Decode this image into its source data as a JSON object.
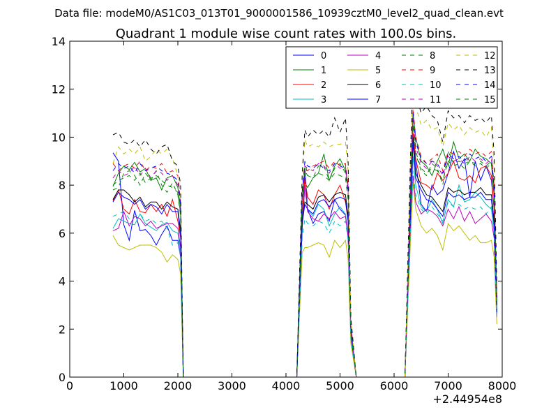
{
  "chart_data": {
    "type": "line",
    "supertitle": "Data file: modeM0/AS1C03_013T01_9000001586_10939cztM0_level2_quad_clean.evt",
    "title": "Quadrant 1 module wise count rates with 100.0s bins.",
    "xlabel": "",
    "ylabel": "",
    "x_offset_label": "+2.44954e8",
    "xlim": [
      0,
      8000
    ],
    "ylim": [
      0,
      14
    ],
    "x_ticks": [
      0,
      1000,
      2000,
      3000,
      4000,
      5000,
      6000,
      7000,
      8000
    ],
    "y_ticks": [
      0,
      2,
      4,
      6,
      8,
      10,
      12,
      14
    ],
    "x": [
      800,
      900,
      1000,
      1100,
      1200,
      1300,
      1400,
      1500,
      1600,
      1700,
      1800,
      1900,
      2000,
      2050,
      2100,
      2200,
      4200,
      4300,
      4350,
      4400,
      4500,
      4600,
      4700,
      4800,
      4900,
      5000,
      5100,
      5150,
      5200,
      5300,
      6200,
      6300,
      6350,
      6400,
      6500,
      6600,
      6700,
      6800,
      6900,
      7000,
      7100,
      7200,
      7300,
      7400,
      7500,
      7600,
      7700,
      7800,
      7850,
      7900
    ],
    "legend_position": "top-right",
    "legend_columns": 4,
    "series": [
      {
        "name": "0",
        "color": "#0000ff",
        "dash": "solid",
        "values": [
          9.35,
          9.0,
          6.35,
          5.7,
          6.95,
          6.1,
          6.15,
          5.9,
          5.5,
          5.95,
          6.3,
          5.7,
          5.7,
          5.0,
          0,
          0,
          0,
          6.5,
          8.7,
          7.0,
          6.4,
          6.8,
          6.9,
          6.5,
          7.4,
          7.0,
          6.75,
          5.8,
          1.8,
          0,
          0,
          6.9,
          9.8,
          9.0,
          7.2,
          6.9,
          8.0,
          7.6,
          7.8,
          8.5,
          9.4,
          8.7,
          9.1,
          7.5,
          9.0,
          8.2,
          8.8,
          8.2,
          7.0,
          3.0
        ]
      },
      {
        "name": "1",
        "color": "#008000",
        "dash": "solid",
        "values": [
          7.95,
          8.5,
          8.8,
          8.65,
          8.95,
          8.55,
          8.7,
          8.2,
          8.3,
          7.8,
          8.3,
          8.4,
          7.9,
          7.0,
          0,
          0,
          0,
          7.6,
          8.1,
          7.9,
          8.3,
          8.5,
          9.3,
          8.2,
          8.8,
          9.1,
          8.6,
          8.0,
          2.0,
          0,
          0,
          7.5,
          11.0,
          10.0,
          9.0,
          8.8,
          8.4,
          9.0,
          9.5,
          8.8,
          9.8,
          9.1,
          9.3,
          9.0,
          9.5,
          9.2,
          9.1,
          8.9,
          7.5,
          3.0
        ]
      },
      {
        "name": "2",
        "color": "#ff0000",
        "dash": "solid",
        "values": [
          7.35,
          7.8,
          7.0,
          6.8,
          7.4,
          6.9,
          6.85,
          7.2,
          6.9,
          7.2,
          6.7,
          7.4,
          6.5,
          5.8,
          0,
          0,
          0,
          6.8,
          8.3,
          7.5,
          7.2,
          7.8,
          7.6,
          7.0,
          7.6,
          8.0,
          7.3,
          6.5,
          1.8,
          0,
          0,
          7.2,
          10.2,
          9.1,
          8.1,
          8.0,
          7.8,
          8.5,
          8.2,
          8.5,
          9.0,
          8.3,
          8.2,
          8.4,
          8.1,
          8.7,
          8.8,
          8.4,
          7.0,
          2.8
        ]
      },
      {
        "name": "3",
        "color": "#00bfbf",
        "dash": "solid",
        "values": [
          6.2,
          6.6,
          6.5,
          6.4,
          6.35,
          6.8,
          6.4,
          6.25,
          6.1,
          6.35,
          6.45,
          6.1,
          6.0,
          5.2,
          0,
          0,
          0,
          6.3,
          7.9,
          7.0,
          6.7,
          7.2,
          7.0,
          6.3,
          6.8,
          7.1,
          6.8,
          6.0,
          1.7,
          0,
          0,
          6.3,
          9.2,
          8.0,
          7.1,
          6.9,
          7.4,
          7.0,
          6.4,
          7.4,
          7.1,
          8.0,
          7.3,
          7.4,
          7.7,
          7.5,
          7.2,
          7.0,
          6.0,
          2.6
        ]
      },
      {
        "name": "4",
        "color": "#bf00bf",
        "dash": "solid",
        "values": [
          6.1,
          6.2,
          6.9,
          6.3,
          6.7,
          6.6,
          6.3,
          6.5,
          6.2,
          6.3,
          6.4,
          6.4,
          6.2,
          5.4,
          0,
          0,
          0,
          6.2,
          8.0,
          6.9,
          6.6,
          6.5,
          6.8,
          6.6,
          6.9,
          6.6,
          6.7,
          5.9,
          1.7,
          0,
          0,
          6.1,
          8.4,
          7.3,
          6.8,
          7.0,
          6.9,
          6.7,
          6.3,
          7.0,
          6.6,
          7.1,
          6.5,
          6.9,
          6.4,
          6.6,
          6.8,
          6.5,
          5.8,
          2.5
        ]
      },
      {
        "name": "5",
        "color": "#bfbf00",
        "dash": "solid",
        "values": [
          5.9,
          5.5,
          5.4,
          5.3,
          5.4,
          5.5,
          5.5,
          5.5,
          5.4,
          5.2,
          4.8,
          5.1,
          4.9,
          4.3,
          0,
          0,
          0,
          5.2,
          5.4,
          5.4,
          5.5,
          5.6,
          5.5,
          5.0,
          5.7,
          5.4,
          5.7,
          4.9,
          1.4,
          0,
          0,
          5.5,
          8.1,
          7.0,
          6.3,
          6.0,
          6.2,
          5.9,
          5.3,
          6.4,
          6.1,
          6.3,
          6.0,
          5.7,
          5.9,
          5.6,
          5.6,
          5.7,
          5.0,
          2.2
        ]
      },
      {
        "name": "6",
        "color": "#000000",
        "dash": "solid",
        "values": [
          7.4,
          7.8,
          7.8,
          7.6,
          7.3,
          7.5,
          7.1,
          7.3,
          7.3,
          7.0,
          7.3,
          7.1,
          7.0,
          6.1,
          0,
          0,
          0,
          6.5,
          7.3,
          7.2,
          7.0,
          7.5,
          7.6,
          7.3,
          7.6,
          7.7,
          7.6,
          6.7,
          1.9,
          0,
          0,
          6.9,
          10.0,
          8.5,
          8.0,
          7.6,
          7.5,
          7.2,
          6.9,
          7.9,
          7.7,
          7.8,
          7.6,
          7.7,
          7.7,
          7.9,
          7.6,
          7.6,
          6.5,
          2.8
        ]
      },
      {
        "name": "7",
        "color": "#0000ff",
        "dash": "solid",
        "values": [
          7.3,
          7.7,
          7.5,
          7.4,
          7.2,
          7.4,
          7.0,
          7.2,
          7.1,
          6.8,
          7.2,
          6.9,
          6.9,
          5.9,
          0,
          0,
          0,
          6.4,
          7.2,
          7.0,
          6.8,
          7.3,
          7.4,
          7.1,
          7.4,
          7.5,
          7.4,
          6.5,
          1.9,
          0,
          0,
          6.7,
          9.8,
          8.3,
          7.8,
          7.4,
          7.3,
          7.0,
          6.7,
          7.7,
          7.5,
          7.6,
          7.4,
          7.5,
          7.5,
          7.7,
          7.4,
          7.4,
          6.3,
          2.7
        ]
      },
      {
        "name": "8",
        "color": "#008000",
        "dash": "dashed",
        "values": [
          7.8,
          7.9,
          8.5,
          8.6,
          8.4,
          8.0,
          8.5,
          8.2,
          8.6,
          8.0,
          7.7,
          8.1,
          7.6,
          6.7,
          0,
          0,
          0,
          7.3,
          9.0,
          8.4,
          8.3,
          8.8,
          8.8,
          8.2,
          8.7,
          8.9,
          8.5,
          7.6,
          2.1,
          0,
          0,
          7.5,
          10.7,
          9.3,
          8.6,
          8.4,
          8.9,
          8.7,
          8.0,
          9.4,
          8.9,
          9.0,
          8.9,
          9.0,
          8.9,
          9.0,
          8.8,
          9.0,
          7.8,
          3.2
        ]
      },
      {
        "name": "9",
        "color": "#ff0000",
        "dash": "dashed",
        "values": [
          8.9,
          8.6,
          8.8,
          8.9,
          8.7,
          9.0,
          8.6,
          8.8,
          8.7,
          8.9,
          8.5,
          8.6,
          8.4,
          7.3,
          0,
          0,
          0,
          7.6,
          8.7,
          8.6,
          8.8,
          8.9,
          9.0,
          8.7,
          9.0,
          8.8,
          8.9,
          8.0,
          2.2,
          0,
          0,
          8.0,
          11.2,
          10.0,
          9.2,
          8.9,
          9.1,
          9.3,
          8.6,
          9.4,
          9.3,
          9.4,
          9.2,
          9.5,
          9.3,
          9.4,
          9.2,
          9.4,
          8.0,
          3.4
        ]
      },
      {
        "name": "10",
        "color": "#00bfbf",
        "dash": "dashed",
        "values": [
          6.7,
          6.8,
          6.9,
          6.6,
          6.7,
          6.8,
          6.5,
          6.6,
          6.4,
          6.5,
          6.2,
          5.5,
          5.6,
          5.0,
          0,
          0,
          0,
          5.8,
          6.6,
          6.4,
          6.3,
          6.5,
          6.4,
          6.0,
          6.5,
          6.3,
          6.5,
          5.7,
          1.6,
          0,
          0,
          6.0,
          8.6,
          7.6,
          7.0,
          6.8,
          7.1,
          6.8,
          6.5,
          7.3,
          7.1,
          7.2,
          7.0,
          7.1,
          7.0,
          7.1,
          6.8,
          7.1,
          6.0,
          2.6
        ]
      },
      {
        "name": "11",
        "color": "#bf00bf",
        "dash": "dashed",
        "values": [
          8.3,
          8.6,
          8.4,
          8.5,
          8.8,
          8.4,
          8.7,
          8.3,
          8.6,
          8.5,
          8.2,
          8.4,
          8.0,
          7.0,
          0,
          0,
          0,
          7.8,
          8.8,
          8.7,
          8.6,
          8.9,
          8.8,
          8.5,
          8.9,
          8.7,
          8.8,
          7.8,
          2.1,
          0,
          0,
          7.7,
          10.8,
          9.6,
          8.9,
          8.7,
          9.0,
          8.8,
          8.4,
          9.2,
          9.0,
          9.1,
          8.9,
          9.2,
          9.0,
          9.1,
          8.9,
          9.1,
          7.7,
          3.3
        ]
      },
      {
        "name": "12",
        "color": "#bfbf00",
        "dash": "dashed",
        "values": [
          8.9,
          9.6,
          9.3,
          9.5,
          9.3,
          9.6,
          9.0,
          9.2,
          9.5,
          9.3,
          9.5,
          9.1,
          8.4,
          7.6,
          0,
          0,
          0,
          8.3,
          9.9,
          9.6,
          9.7,
          9.6,
          9.8,
          9.6,
          9.7,
          9.7,
          9.8,
          8.6,
          2.4,
          0,
          0,
          8.6,
          12.5,
          11.3,
          10.5,
          10.7,
          10.3,
          10.4,
          9.6,
          10.6,
          10.3,
          10.5,
          10.1,
          10.4,
          10.2,
          10.3,
          10.0,
          10.4,
          8.8,
          3.7
        ]
      },
      {
        "name": "13",
        "color": "#000000",
        "dash": "dashed",
        "values": [
          10.1,
          10.2,
          9.8,
          9.7,
          9.9,
          9.6,
          9.9,
          9.5,
          9.3,
          9.6,
          9.7,
          9.0,
          8.8,
          8.0,
          0,
          0,
          0,
          8.5,
          10.3,
          10.0,
          10.3,
          10.1,
          10.3,
          10.0,
          10.8,
          10.2,
          10.8,
          9.0,
          2.5,
          0,
          0,
          9.0,
          13.0,
          11.8,
          11.0,
          11.3,
          10.9,
          10.7,
          9.8,
          11.1,
          10.8,
          10.9,
          10.6,
          10.9,
          10.7,
          10.8,
          10.6,
          10.9,
          9.3,
          3.9
        ]
      },
      {
        "name": "14",
        "color": "#0000ff",
        "dash": "dashed",
        "values": [
          8.6,
          8.9,
          8.7,
          8.8,
          8.5,
          8.9,
          8.6,
          8.7,
          8.8,
          8.6,
          8.5,
          8.4,
          8.2,
          7.2,
          0,
          0,
          0,
          7.7,
          9.0,
          8.8,
          8.7,
          8.9,
          8.7,
          8.6,
          8.9,
          8.8,
          8.7,
          7.8,
          2.2,
          0,
          0,
          7.9,
          11.0,
          9.8,
          9.1,
          8.9,
          9.0,
          8.9,
          8.5,
          9.3,
          9.1,
          9.2,
          9.0,
          9.3,
          9.1,
          9.2,
          9.0,
          9.2,
          7.9,
          3.3
        ]
      },
      {
        "name": "15",
        "color": "#008000",
        "dash": "dashed",
        "values": [
          8.0,
          8.2,
          8.3,
          8.4,
          8.2,
          8.5,
          8.1,
          8.3,
          8.4,
          8.2,
          8.0,
          7.9,
          7.7,
          6.8,
          0,
          0,
          0,
          7.4,
          8.6,
          8.4,
          8.3,
          8.5,
          8.4,
          8.2,
          8.5,
          8.4,
          8.3,
          7.4,
          2.1,
          0,
          0,
          7.6,
          10.5,
          9.4,
          8.7,
          8.5,
          8.7,
          8.6,
          8.2,
          9.0,
          8.8,
          8.9,
          8.7,
          9.0,
          8.8,
          8.9,
          8.7,
          8.9,
          7.6,
          3.2
        ]
      }
    ]
  }
}
